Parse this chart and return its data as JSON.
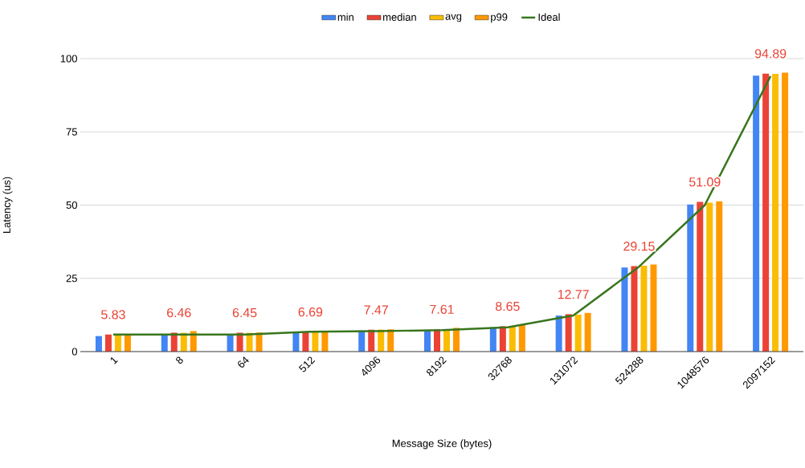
{
  "chart_data": {
    "type": "bar",
    "xlabel": "Message Size (bytes)",
    "ylabel": "Latency (us)",
    "categories": [
      "1",
      "8",
      "64",
      "512",
      "4096",
      "8192",
      "32768",
      "131072",
      "524288",
      "1048576",
      "2097152"
    ],
    "series": [
      {
        "name": "min",
        "color": "#4285f4",
        "values": [
          5.3,
          6.0,
          6.0,
          6.5,
          7.2,
          7.3,
          8.3,
          12.3,
          28.7,
          50.2,
          94.2
        ]
      },
      {
        "name": "median",
        "color": "#ea4335",
        "values": [
          5.83,
          6.46,
          6.45,
          6.69,
          7.47,
          7.61,
          8.65,
          12.77,
          29.15,
          51.09,
          94.89
        ],
        "value_labels": [
          "5.83",
          "6.46",
          "6.45",
          "6.69",
          "7.47",
          "7.61",
          "8.65",
          "12.77",
          "29.15",
          "51.09",
          "94.89"
        ]
      },
      {
        "name": "avg",
        "color": "#fbbc04",
        "values": [
          5.9,
          6.4,
          6.4,
          7.0,
          7.5,
          7.6,
          8.7,
          12.6,
          29.3,
          50.8,
          94.8
        ]
      },
      {
        "name": "p99",
        "color": "#ff9900",
        "values": [
          6.0,
          7.0,
          6.5,
          7.1,
          7.6,
          8.1,
          9.3,
          13.2,
          29.7,
          51.3,
          95.2
        ]
      },
      {
        "name": "Ideal",
        "type": "line",
        "color": "#38761d",
        "values": [
          5.8,
          5.8,
          5.8,
          6.8,
          7.0,
          7.3,
          8.3,
          12.3,
          29.0,
          50.0,
          94.0
        ]
      }
    ],
    "ylim": [
      0,
      100
    ],
    "yticks": [
      0,
      25,
      50,
      75,
      100
    ],
    "grid": "y",
    "legend": "top",
    "marker": "none",
    "line_style": "solid"
  }
}
